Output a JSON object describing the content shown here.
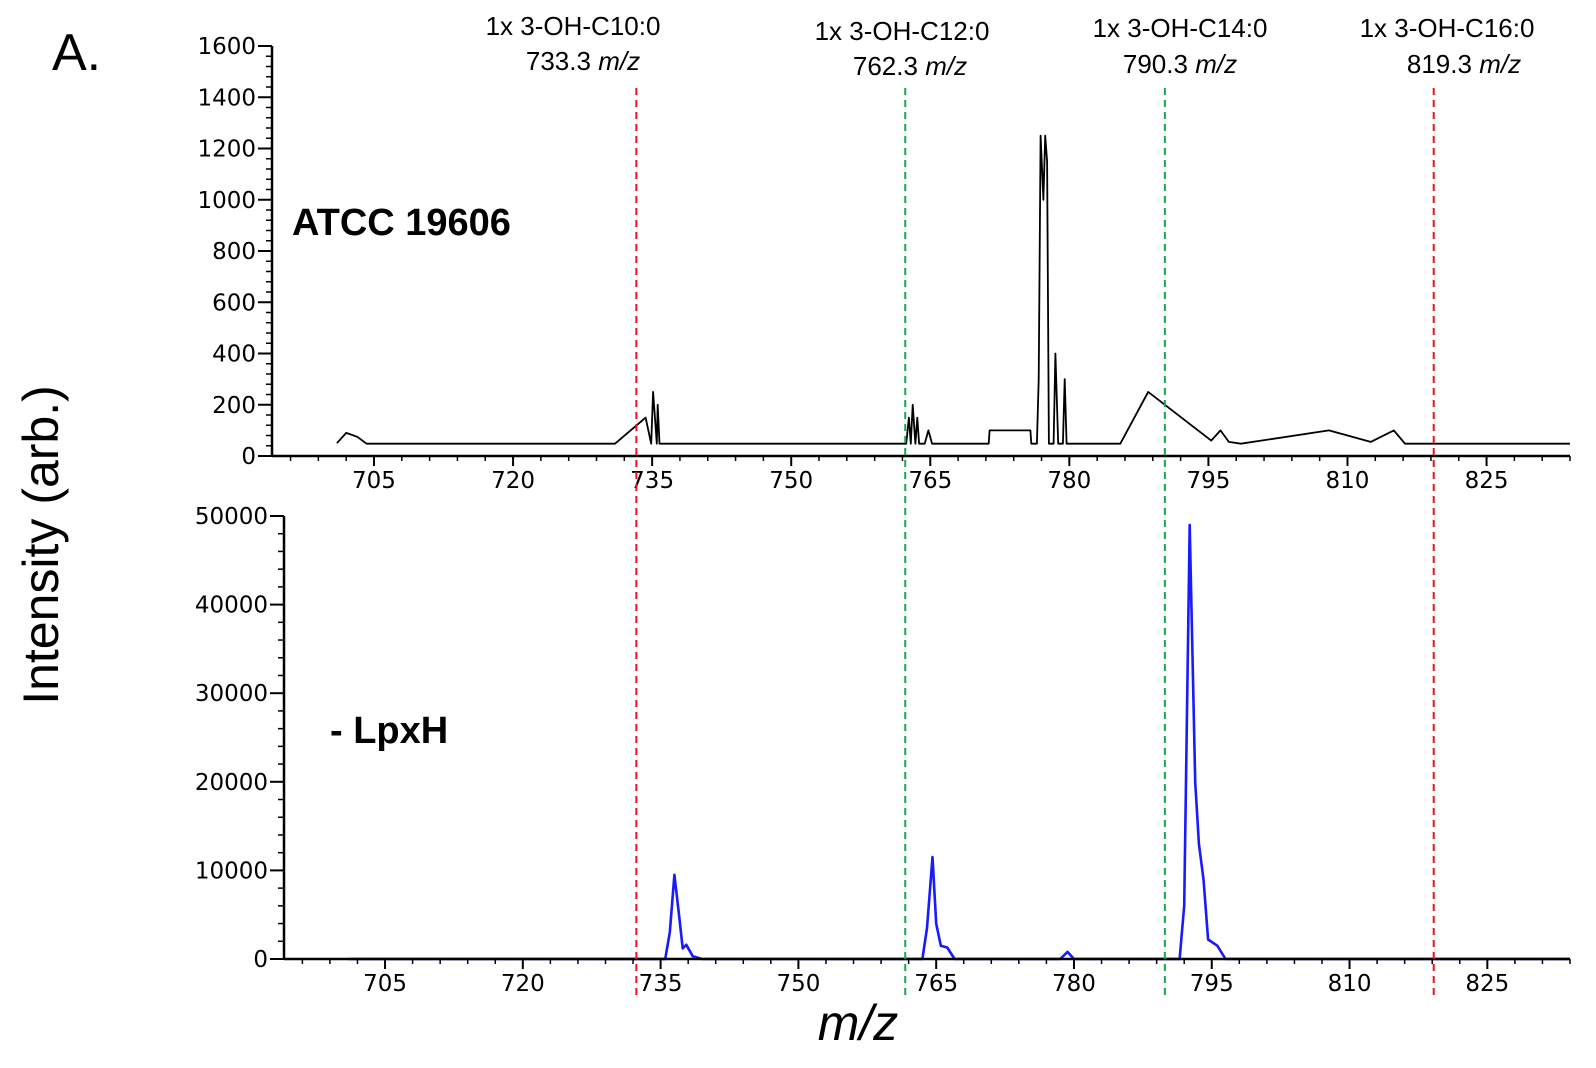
{
  "figure": {
    "panel_label": "A.",
    "ylabel": "Intensity (arb.)",
    "xlabel": "m/z"
  },
  "colors": {
    "top_trace": "#000000",
    "bottom_trace": "#1a1aff",
    "red_ref": "#e8141b",
    "green_ref": "#1aa64b"
  },
  "annotations": [
    {
      "label": "1x 3-OH-C10:0",
      "mz": "733.3",
      "unit": "m/z",
      "color": "red"
    },
    {
      "label": "1x 3-OH-C12:0",
      "mz": "762.3",
      "unit": "m/z",
      "color": "green"
    },
    {
      "label": "1x 3-OH-C14:0",
      "mz": "790.3",
      "unit": "m/z",
      "color": "green"
    },
    {
      "label": "1x 3-OH-C16:0",
      "mz": "819.3",
      "unit": "m/z",
      "color": "red"
    }
  ],
  "chart_data": [
    {
      "type": "line",
      "sample_label": "ATCC 19606",
      "xlim": [
        694,
        834
      ],
      "ylim": [
        0,
        1600
      ],
      "xticks": [
        705,
        720,
        735,
        750,
        765,
        780,
        795,
        810,
        825
      ],
      "xtick_labels": [
        "705",
        "720",
        "735",
        "750",
        "765",
        "780",
        "795",
        "810",
        "825"
      ],
      "yticks": [
        0,
        200,
        400,
        600,
        800,
        1000,
        1200,
        1400,
        1600
      ],
      "ytick_labels": [
        "0",
        "200",
        "400",
        "600",
        "800",
        "1000",
        "1200",
        "1400",
        "1600"
      ],
      "series": [
        {
          "points": [
            [
              701,
              50
            ],
            [
              702,
              90
            ],
            [
              703.2,
              75
            ],
            [
              704.2,
              48
            ],
            [
              731,
              48
            ],
            [
              734.3,
              150
            ],
            [
              734.9,
              48
            ],
            [
              735.1,
              250
            ],
            [
              735.5,
              48
            ],
            [
              735.6,
              200
            ],
            [
              735.8,
              48
            ],
            [
              762.4,
              48
            ],
            [
              762.7,
              150
            ],
            [
              762.9,
              48
            ],
            [
              763.1,
              200
            ],
            [
              763.4,
              48
            ],
            [
              763.6,
              150
            ],
            [
              763.8,
              48
            ],
            [
              764.4,
              48
            ],
            [
              764.8,
              100
            ],
            [
              765.2,
              48
            ],
            [
              766.5,
              48
            ],
            [
              771.3,
              48
            ],
            [
              771.4,
              100
            ],
            [
              775.8,
              100
            ],
            [
              775.9,
              48
            ],
            [
              776.5,
              48
            ],
            [
              776.7,
              300
            ],
            [
              776.9,
              1250
            ],
            [
              777.2,
              1000
            ],
            [
              777.4,
              1250
            ],
            [
              777.6,
              1150
            ],
            [
              777.8,
              48
            ],
            [
              778.3,
              48
            ],
            [
              778.5,
              400
            ],
            [
              778.8,
              48
            ],
            [
              779.3,
              48
            ],
            [
              779.5,
              300
            ],
            [
              779.7,
              48
            ],
            [
              785.5,
              48
            ],
            [
              788.5,
              250
            ],
            [
              795.3,
              60
            ],
            [
              796.3,
              100
            ],
            [
              797.2,
              55
            ],
            [
              798.5,
              48
            ],
            [
              808,
              100
            ],
            [
              812.5,
              55
            ],
            [
              815,
              100
            ],
            [
              816.2,
              48
            ],
            [
              834,
              48
            ]
          ]
        }
      ]
    },
    {
      "type": "line",
      "sample_label": "- LpxH",
      "xlim": [
        694,
        834
      ],
      "ylim": [
        0,
        50000
      ],
      "xticks": [
        705,
        720,
        735,
        750,
        765,
        780,
        795,
        810,
        825
      ],
      "xtick_labels": [
        "705",
        "720",
        "735",
        "750",
        "765",
        "780",
        "795",
        "810",
        "825"
      ],
      "yticks": [
        0,
        10000,
        20000,
        30000,
        40000,
        50000
      ],
      "ytick_labels": [
        "0",
        "10000",
        "20000",
        "30000",
        "40000",
        "50000"
      ],
      "series": [
        {
          "points": [
            [
              701,
              0
            ],
            [
              735.5,
              0
            ],
            [
              736,
              3000
            ],
            [
              736.5,
              9500
            ],
            [
              737,
              5000
            ],
            [
              737.4,
              1200
            ],
            [
              737.8,
              1600
            ],
            [
              738.5,
              300
            ],
            [
              739.5,
              0
            ],
            [
              763.5,
              0
            ],
            [
              764,
              3500
            ],
            [
              764.6,
              11500
            ],
            [
              765,
              4000
            ],
            [
              765.5,
              1500
            ],
            [
              766.2,
              1300
            ],
            [
              767,
              0
            ],
            [
              778.5,
              0
            ],
            [
              779.3,
              800
            ],
            [
              780,
              0
            ],
            [
              791.5,
              0
            ],
            [
              792,
              6000
            ],
            [
              792.6,
              49000
            ],
            [
              793.2,
              20000
            ],
            [
              793.6,
              13000
            ],
            [
              794.1,
              9000
            ],
            [
              794.6,
              2200
            ],
            [
              795.6,
              1500
            ],
            [
              796.5,
              0
            ],
            [
              834,
              0
            ]
          ]
        }
      ]
    }
  ]
}
